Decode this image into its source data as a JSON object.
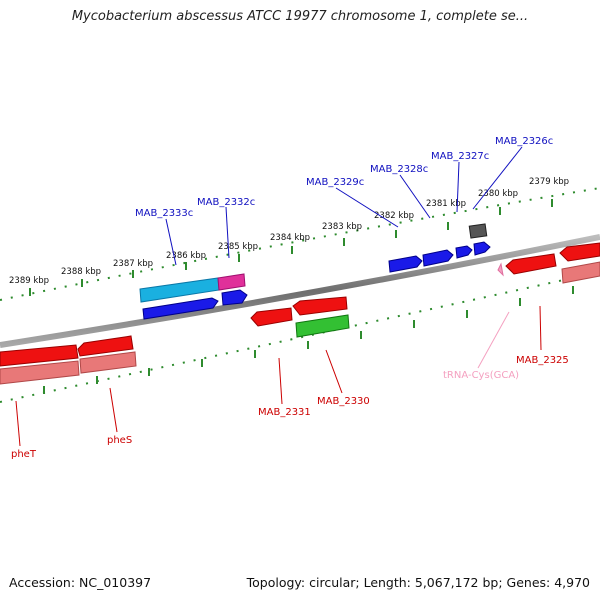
{
  "title": "Mycobacterium abscessus ATCC 19977 chromosome 1, complete se...",
  "footer": {
    "accession": "Accession: NC_010397",
    "topology": "Topology: circular; Length: 5,067,172 bp; Genes: 4,970"
  },
  "colors": {
    "backbone": "#8c8c8c",
    "scale_ticks": "#2e8b2e",
    "forward_label": "#1010c0",
    "reverse_label": "#cc0000",
    "rna_label": "#f4a0c0"
  },
  "scale_ticks": [
    "2389 kbp",
    "2388 kbp",
    "2387 kbp",
    "2386 kbp",
    "2385 kbp",
    "2384 kbp",
    "2383 kbp",
    "2382 kbp",
    "2381 kbp",
    "2380 kbp",
    "2379 kbp"
  ],
  "gene_labels": [
    "MAB_2333c",
    "MAB_2332c",
    "MAB_2329c",
    "MAB_2328c",
    "MAB_2327c",
    "MAB_2326c",
    "tRNA-Cys(GCA)",
    "MAB_2325",
    "MAB_2331",
    "MAB_2330",
    "pheS",
    "pheT"
  ]
}
